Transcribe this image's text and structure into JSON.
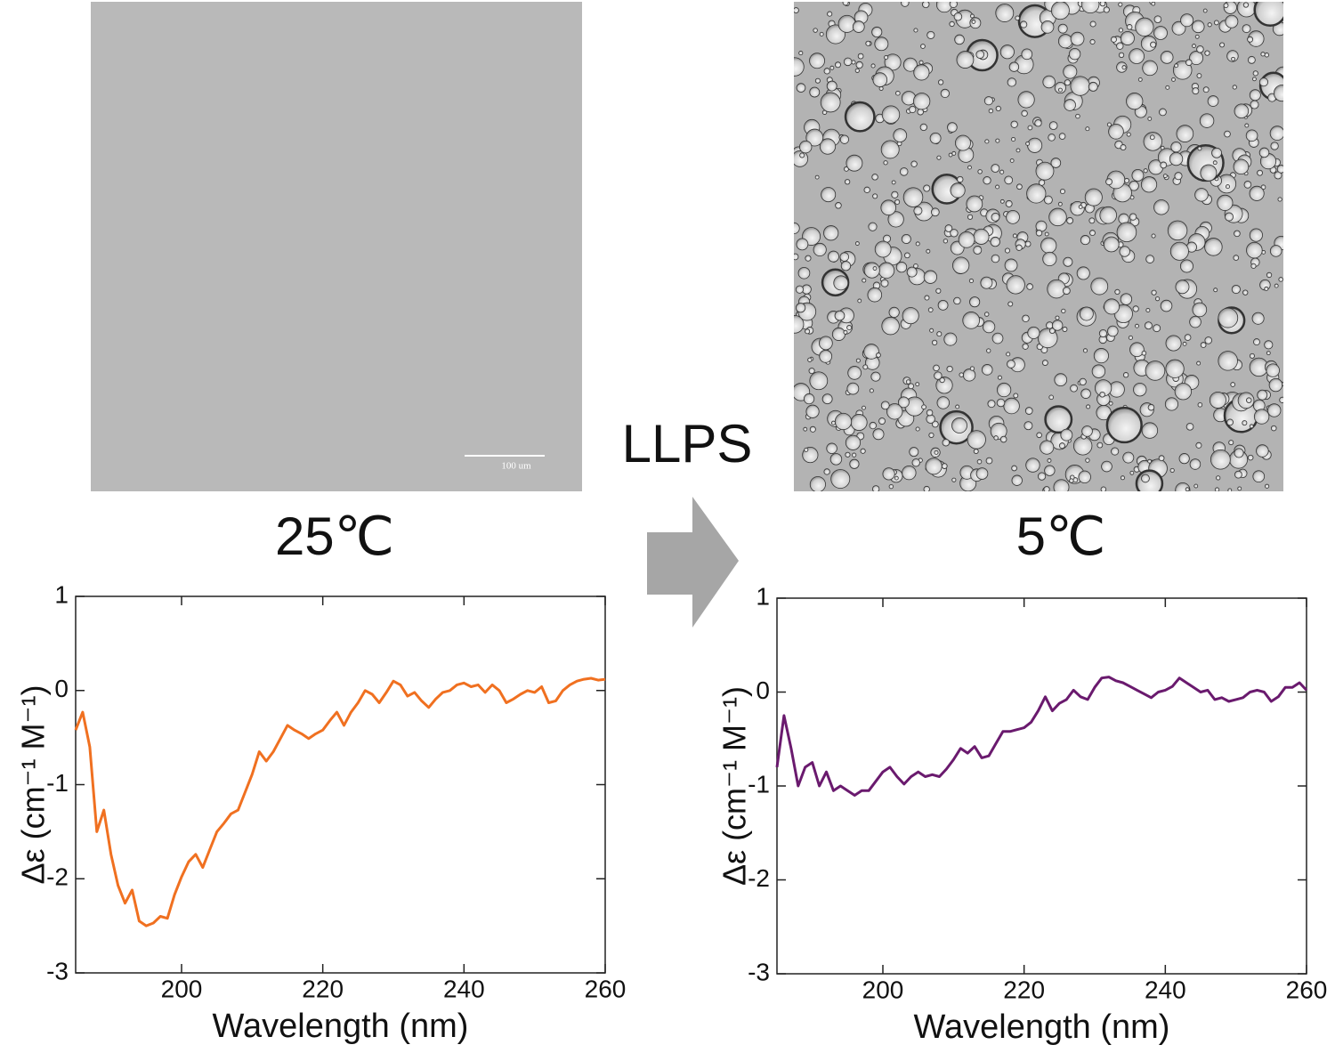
{
  "arrow_label": "LLPS",
  "images": [
    {
      "caption": "25℃",
      "scale_bar": "100 um"
    },
    {
      "caption": "5℃"
    }
  ],
  "chart_data": [
    {
      "type": "line",
      "x_label": "Wavelength (nm)",
      "y_label": "Δε (cm⁻¹ M⁻¹)",
      "xlim": [
        185,
        260
      ],
      "ylim": [
        -3,
        1
      ],
      "xticks": [
        200,
        220,
        240,
        260
      ],
      "yticks": [
        1,
        0,
        -1,
        -2,
        -3
      ],
      "x": [
        185,
        186,
        187,
        188,
        189,
        190,
        191,
        192,
        193,
        194,
        195,
        196,
        197,
        198,
        199,
        200,
        201,
        202,
        203,
        204,
        205,
        206,
        207,
        208,
        209,
        210,
        211,
        212,
        213,
        214,
        215,
        216,
        217,
        218,
        219,
        220,
        221,
        222,
        223,
        224,
        225,
        226,
        227,
        228,
        229,
        230,
        231,
        232,
        233,
        234,
        235,
        236,
        237,
        238,
        239,
        240,
        241,
        242,
        243,
        244,
        245,
        246,
        247,
        248,
        249,
        250,
        251,
        252,
        253,
        254,
        255,
        256,
        257,
        258,
        259,
        260
      ],
      "series": [
        {
          "color": "#f07020",
          "values": [
            -0.42,
            -0.23,
            -0.6,
            -1.5,
            -1.27,
            -1.74,
            -2.07,
            -2.26,
            -2.12,
            -2.45,
            -2.5,
            -2.47,
            -2.4,
            -2.42,
            -2.17,
            -1.98,
            -1.82,
            -1.74,
            -1.88,
            -1.69,
            -1.5,
            -1.41,
            -1.31,
            -1.27,
            -1.08,
            -0.89,
            -0.65,
            -0.75,
            -0.65,
            -0.51,
            -0.37,
            -0.42,
            -0.46,
            -0.51,
            -0.46,
            -0.42,
            -0.32,
            -0.23,
            -0.37,
            -0.23,
            -0.13,
            0.0,
            -0.04,
            -0.13,
            -0.02,
            0.1,
            0.06,
            -0.06,
            -0.02,
            -0.11,
            -0.18,
            -0.09,
            -0.02,
            0.0,
            0.06,
            0.08,
            0.04,
            0.06,
            -0.02,
            0.06,
            0.0,
            -0.13,
            -0.09,
            -0.04,
            0.0,
            -0.02,
            0.04,
            -0.13,
            -0.11,
            0.0,
            0.06,
            0.1,
            0.12,
            0.13,
            0.11,
            0.12
          ]
        }
      ]
    },
    {
      "type": "line",
      "x_label": "Wavelength (nm)",
      "y_label": "Δε (cm⁻¹ M⁻¹)",
      "xlim": [
        185,
        260
      ],
      "ylim": [
        -3,
        1
      ],
      "xticks": [
        200,
        220,
        240,
        260
      ],
      "yticks": [
        1,
        0,
        -1,
        -2,
        -3
      ],
      "x": [
        185,
        186,
        187,
        188,
        189,
        190,
        191,
        192,
        193,
        194,
        195,
        196,
        197,
        198,
        199,
        200,
        201,
        202,
        203,
        204,
        205,
        206,
        207,
        208,
        209,
        210,
        211,
        212,
        213,
        214,
        215,
        216,
        217,
        218,
        219,
        220,
        221,
        222,
        223,
        224,
        225,
        226,
        227,
        228,
        229,
        230,
        231,
        232,
        233,
        234,
        235,
        236,
        237,
        238,
        239,
        240,
        241,
        242,
        243,
        244,
        245,
        246,
        247,
        248,
        249,
        250,
        251,
        252,
        253,
        254,
        255,
        256,
        257,
        258,
        259,
        260
      ],
      "series": [
        {
          "color": "#6a1a6e",
          "values": [
            -0.8,
            -0.25,
            -0.6,
            -1.0,
            -0.8,
            -0.75,
            -1.0,
            -0.85,
            -1.05,
            -1.0,
            -1.05,
            -1.1,
            -1.05,
            -1.05,
            -0.95,
            -0.85,
            -0.8,
            -0.9,
            -0.98,
            -0.9,
            -0.85,
            -0.9,
            -0.88,
            -0.9,
            -0.82,
            -0.72,
            -0.6,
            -0.65,
            -0.58,
            -0.7,
            -0.68,
            -0.55,
            -0.42,
            -0.42,
            -0.4,
            -0.38,
            -0.32,
            -0.2,
            -0.05,
            -0.2,
            -0.12,
            -0.08,
            0.02,
            -0.05,
            -0.08,
            0.05,
            0.15,
            0.16,
            0.12,
            0.1,
            0.06,
            0.02,
            -0.02,
            -0.06,
            0.0,
            0.02,
            0.06,
            0.15,
            0.1,
            0.05,
            0.0,
            0.02,
            -0.08,
            -0.06,
            -0.1,
            -0.08,
            -0.06,
            0.0,
            0.02,
            0.0,
            -0.1,
            -0.05,
            0.05,
            0.05,
            0.1,
            0.02
          ]
        }
      ]
    }
  ]
}
